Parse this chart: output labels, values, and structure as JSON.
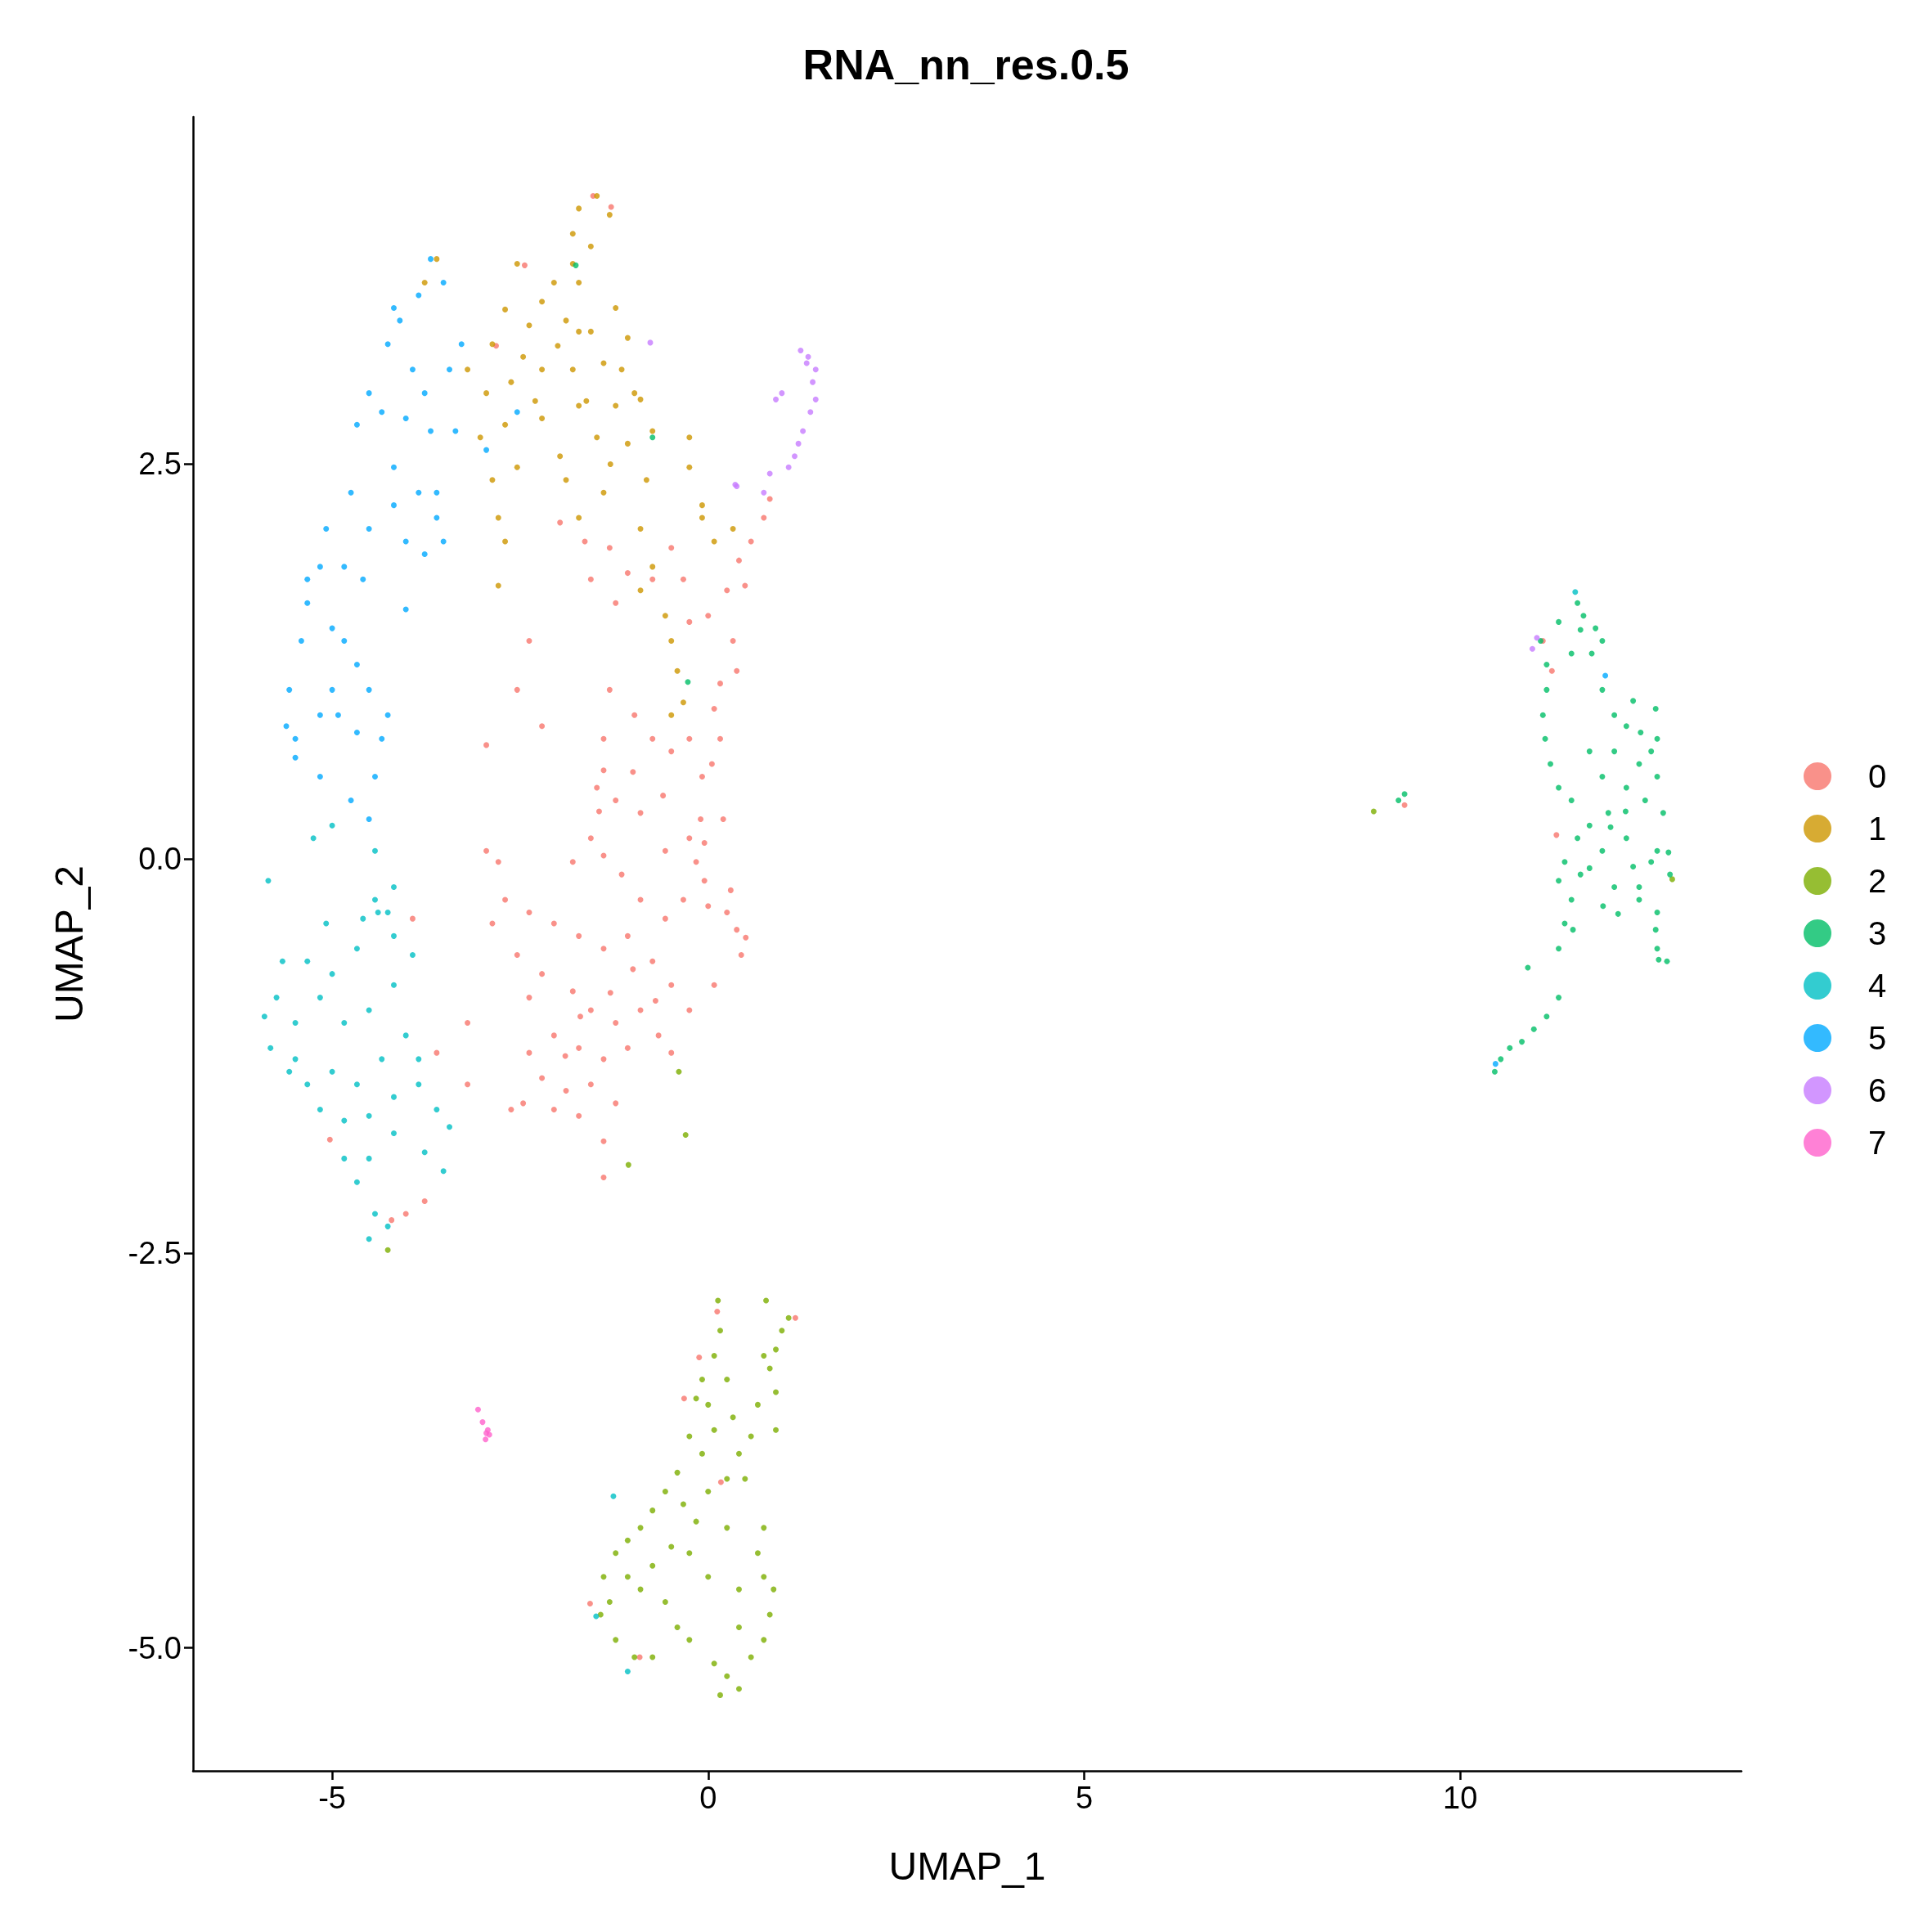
{
  "chart_data": {
    "type": "scatter",
    "title": "RNA_nn_res.0.5",
    "xlabel": "UMAP_1",
    "ylabel": "UMAP_2",
    "xlim": [
      -6.85,
      13.74
    ],
    "ylim": [
      -5.78,
      4.7
    ],
    "xticks": [
      -5,
      0,
      5,
      10
    ],
    "yticks": [
      {
        "value": -5,
        "label": "-5.0"
      },
      {
        "value": -2.5,
        "label": "-2.5"
      },
      {
        "value": 0,
        "label": "0.0"
      },
      {
        "value": 2.5,
        "label": "2.5"
      }
    ],
    "grid": false,
    "legend": "right",
    "marker": "circle",
    "series": [
      {
        "name": "0",
        "color": "#f8766d",
        "x": [
          -1.97,
          -1.64,
          -1.31,
          -1.07,
          -1.56,
          -1.23,
          -0.74,
          -0.49,
          -0.33,
          -0.25,
          0,
          0.25,
          0.41,
          0.57,
          0.74,
          0.82,
          0.49,
          0.33,
          0.38,
          0.16,
          0.08,
          0.16,
          0.05,
          -0.08,
          -0.25,
          -0.49,
          -0.74,
          -0.98,
          -1.31,
          -1.39,
          -1.39,
          -1.48,
          -1.23,
          -0.9,
          -1.56,
          -1.39,
          -1.8,
          -1.15,
          -0.57,
          -0.25,
          -0.16,
          -0.05,
          -0.33,
          -0.57,
          -0.9,
          0.25,
          0.38,
          0.44,
          0.08,
          -0.25,
          -0.49,
          -0.74,
          -1.07,
          -1.39,
          -1.72,
          -2.05,
          -2.38,
          -2.7,
          -2.87,
          -2.54,
          -2.21,
          -1.8,
          -1.56,
          -1.23,
          -0.9,
          -0.66,
          -0.49,
          -1.07,
          -1.39,
          -1.72,
          -2.05,
          -2.38,
          -2.21,
          -1.89,
          -1.56,
          -1.23,
          -1.72,
          -2.05,
          -2.46,
          -2.62,
          -1.39,
          -1.39,
          -2.38,
          -2.79,
          -2.95,
          -2.95,
          -2.54,
          -2.38,
          -2.21,
          -3.2,
          -3.61,
          -3.2,
          -4.02,
          -3.77,
          -4.21,
          -3.93,
          -5.03,
          -1.53,
          -1.29,
          -2.82,
          -2.44,
          11.1,
          11.22,
          11.28,
          9.26,
          0.12,
          1.16,
          -0.32,
          -0.12,
          0.17,
          -1.57,
          -0.91,
          -0.1,
          -0.05,
          0,
          -1.45,
          -1,
          -1.3,
          -1.7,
          -0.7,
          -1.9,
          0.3,
          0.5,
          -0.6,
          -1,
          0.2
        ],
        "values": [
          2.13,
          2.01,
          1.97,
          1.81,
          1.77,
          1.62,
          1.77,
          1.97,
          1.77,
          1.5,
          1.54,
          1.7,
          1.89,
          2.01,
          2.16,
          2.28,
          1.73,
          1.38,
          1.19,
          1.11,
          0.95,
          0.76,
          0.6,
          0.52,
          0.76,
          0.68,
          0.76,
          0.91,
          1.07,
          0.76,
          0.56,
          0.45,
          0.37,
          0.29,
          0.13,
          0.02,
          -0.02,
          -0.1,
          0.05,
          0.13,
          -0.02,
          -0.14,
          -0.26,
          -0.38,
          -0.26,
          -0.34,
          -0.45,
          -0.61,
          -0.8,
          -0.96,
          -0.8,
          -0.65,
          -0.49,
          -0.57,
          -0.49,
          -0.41,
          -0.34,
          -0.26,
          -0.41,
          -0.61,
          -0.73,
          -0.84,
          -0.96,
          -1.04,
          -0.96,
          -1.12,
          -1.23,
          -1.2,
          -1.27,
          -1.2,
          -1.12,
          -1.23,
          -1.39,
          -1.47,
          -1.43,
          -1.55,
          -1.63,
          -1.59,
          -1.55,
          -1.59,
          -1.79,
          -2.02,
          -0.88,
          -0.02,
          0.05,
          0.72,
          1.07,
          1.38,
          0.84,
          -1.04,
          -1.23,
          -1.43,
          -2.25,
          -2.17,
          -2.29,
          -0.38,
          -1.78,
          4.2,
          4.13,
          3.25,
          3.76,
          1.38,
          1.19,
          0.15,
          0.34,
          -2.87,
          -2.91,
          -3.42,
          -3.16,
          -3.95,
          -4.72,
          -5.06,
          0.25,
          0.1,
          -0.3,
          0.3,
          -0.7,
          -0.85,
          -1,
          -0.9,
          -1.25,
          -0.2,
          -0.5,
          0.4,
          0.55,
          0.25
        ]
      },
      {
        "name": "1",
        "color": "#cd9600",
        "x": [
          -1.48,
          -1.72,
          -1.31,
          -1.8,
          -1.56,
          -1.8,
          -2.05,
          -1.72,
          -2.21,
          -2.54,
          -2.7,
          -2.38,
          -1.89,
          -1.56,
          -1.23,
          -1.07,
          -2.87,
          -3.2,
          -2.95,
          -2.62,
          -2.21,
          -1.8,
          -1.39,
          -1.15,
          -0.9,
          -1.23,
          -1.72,
          -2.21,
          -2.7,
          -3.03,
          -2.87,
          -2.54,
          -1.97,
          -1.48,
          -1.07,
          -0.82,
          -1.39,
          -1.89,
          -2.79,
          -2.7,
          -2.79,
          -3.61,
          -3.77,
          -0.9,
          -0.74,
          -0.9,
          -0.57,
          -0.49,
          -0.41,
          -0.33,
          -0.49,
          -0.08,
          0.08,
          0.33,
          -0.08,
          -0.25,
          -0.25,
          -1.72,
          -1.72,
          -0.74,
          -0.98,
          -2.46,
          -1.62,
          -2,
          -1.3,
          -2.3
        ],
        "values": [
          4.2,
          4.12,
          4.08,
          3.96,
          3.88,
          3.77,
          3.65,
          3.65,
          3.53,
          3.77,
          3.48,
          3.38,
          3.41,
          3.34,
          3.49,
          3.3,
          3.26,
          3.1,
          2.95,
          3.02,
          3.1,
          3.1,
          3.14,
          3.1,
          2.91,
          2.87,
          2.87,
          2.79,
          2.75,
          2.67,
          2.4,
          2.48,
          2.55,
          2.67,
          2.63,
          2.4,
          2.32,
          2.4,
          2.16,
          2.01,
          1.73,
          3.8,
          3.65,
          2.09,
          1.85,
          1.7,
          1.54,
          1.38,
          1.19,
          0.99,
          0.91,
          2.16,
          2.01,
          2.09,
          2.24,
          2.67,
          2.48,
          2.16,
          3.34,
          2.71,
          2.95,
          3.18,
          2.9,
          3.25,
          2.5,
          2.9
        ]
      },
      {
        "name": "2",
        "color": "#7cae00",
        "x": [
          0.13,
          0.16,
          0.08,
          -0.08,
          0,
          -0.16,
          0.25,
          0.33,
          -0.25,
          -0.08,
          0.08,
          0.57,
          0.66,
          0.41,
          0.74,
          0.82,
          0.9,
          0.98,
          1.07,
          0.77,
          0.9,
          0.9,
          -0.41,
          -0.57,
          -0.74,
          -0.9,
          -0.33,
          -1.07,
          -1.23,
          -1.39,
          -1.31,
          -1.43,
          -1.23,
          -0.98,
          -0.74,
          -0.9,
          -0.57,
          -0.74,
          -0.25,
          0,
          -0.25,
          0.08,
          0.25,
          0.41,
          0.16,
          0.57,
          0.74,
          0.82,
          0.87,
          0.74,
          0.66,
          0.74,
          0.41,
          0.25,
          0.41,
          -0.41,
          -1.07,
          -0.49,
          0,
          -0.16,
          0.25,
          0.49,
          -0.39,
          -0.3,
          -1.06,
          -4.26,
          8.85,
          12.82
        ],
        "values": [
          -2.8,
          -2.99,
          -3.15,
          -3.3,
          -3.46,
          -3.42,
          -3.3,
          -3.54,
          -3.66,
          -3.77,
          -3.62,
          -3.66,
          -3.46,
          -3.77,
          -3.15,
          -3.23,
          -3.11,
          -2.99,
          -2.91,
          -2.8,
          -3.38,
          -3.62,
          -3.89,
          -4.01,
          -4.13,
          -4.24,
          -4.09,
          -4.32,
          -4.4,
          -4.55,
          -4.71,
          -4.79,
          -4.95,
          -5.06,
          -5.06,
          -4.63,
          -4.71,
          -4.48,
          -4.4,
          -4.55,
          -4.95,
          -5.1,
          -5.18,
          -5.26,
          -5.3,
          -5.06,
          -4.95,
          -4.79,
          -4.63,
          -4.55,
          -4.4,
          -4.24,
          -4.87,
          -4.24,
          -4.63,
          -4.87,
          -4.55,
          -4.36,
          -4.01,
          -4.2,
          -3.93,
          -3.93,
          -1.35,
          -1.75,
          -1.94,
          -2.48,
          0.3,
          -0.13
        ]
      },
      {
        "name": "3",
        "color": "#00be67",
        "x": [
          11.56,
          11.07,
          11.31,
          11.64,
          11.8,
          11.89,
          11.48,
          11.15,
          11.15,
          11.1,
          11.13,
          11.2,
          11.31,
          11.48,
          11.89,
          12.05,
          12.21,
          12.62,
          12.54,
          12.38,
          12.62,
          12.21,
          12.46,
          12.7,
          11.97,
          11.89,
          11.72,
          12.05,
          11.56,
          11.89,
          12.21,
          12.54,
          12.79,
          11.39,
          11.31,
          11.72,
          12.05,
          12.38,
          12.62,
          12.62,
          12.38,
          11.48,
          11.72,
          12.62,
          11.39,
          11.31,
          10.9,
          11.31,
          11.15,
          10.98,
          10.82,
          10.66,
          10.54,
          10.46,
          9.18,
          9.26,
          11.6,
          11.75,
          12,
          12.2,
          12.3,
          11.6,
          12.1,
          12.6,
          12.75,
          11.5,
          11.9,
          12.4,
          12.6,
          12.3,
          12.77,
          12.64,
          -1.76,
          -0.74,
          -0.27
        ],
        "values": [
          1.62,
          1.38,
          1.5,
          1.54,
          1.46,
          1.38,
          1.3,
          1.23,
          1.07,
          0.91,
          0.76,
          0.6,
          0.45,
          0.37,
          1.07,
          0.91,
          0.84,
          0.76,
          0.68,
          0.6,
          0.52,
          0.45,
          0.37,
          0.29,
          0.29,
          0.52,
          0.68,
          0.68,
          0.13,
          0.05,
          0.13,
          -0.02,
          -0.1,
          -0.02,
          -0.14,
          -0.06,
          -0.18,
          -0.26,
          -0.34,
          -0.57,
          -0.18,
          -0.26,
          0.21,
          0.05,
          -0.41,
          -0.57,
          -0.69,
          -0.88,
          -1,
          -1.08,
          -1.16,
          -1.2,
          -1.27,
          -1.35,
          0.37,
          0.41,
          1.45,
          1.3,
          0.2,
          0.3,
          -0.05,
          -0.1,
          -0.35,
          -0.45,
          -0.65,
          -0.45,
          -0.3,
          0.8,
          0.95,
          1,
          0.04,
          -0.64,
          3.76,
          2.67,
          1.12
        ]
      },
      {
        "name": "4",
        "color": "#00bfc4",
        "x": [
          -5,
          -5.25,
          -4.43,
          -4.43,
          -4.26,
          -4.59,
          -4.18,
          -5.08,
          -5.33,
          -5,
          -4.67,
          -5.66,
          -5.85,
          -5.9,
          -5.82,
          -5.49,
          -5.16,
          -4.84,
          -4.51,
          -4.18,
          -4.02,
          -4.34,
          -4.67,
          -5,
          -5.33,
          -5.49,
          -5.16,
          -4.84,
          -4.51,
          -4.18,
          -3.85,
          -3.61,
          -3.44,
          -3.77,
          -3.52,
          -4.18,
          -4.51,
          -4.67,
          -4.43,
          -4.51,
          -4.26,
          -4.84,
          -5.74,
          -5.57,
          -4.18,
          -3.93,
          -3.85,
          -4.39,
          -1.26,
          -1.49,
          -1.07,
          11.53
        ],
        "values": [
          0.21,
          0.13,
          0.05,
          -0.26,
          -0.34,
          -0.38,
          -0.49,
          -0.41,
          -0.65,
          -0.73,
          -0.57,
          -0.65,
          -0.14,
          -1,
          -1.2,
          -1.04,
          -0.88,
          -1.04,
          -0.96,
          -0.8,
          -1.12,
          -1.27,
          -1.43,
          -1.35,
          -1.43,
          -1.27,
          -1.59,
          -1.66,
          -1.63,
          -1.51,
          -1.43,
          -1.59,
          -1.7,
          -1.86,
          -1.98,
          -1.74,
          -1.9,
          -2.05,
          -2.25,
          -2.41,
          -2.33,
          -1.9,
          -0.88,
          -1.35,
          -0.18,
          -0.61,
          -1.27,
          -0.34,
          -4.04,
          -4.8,
          -5.15,
          1.69
        ]
      },
      {
        "name": "5",
        "color": "#00a9ff",
        "x": [
          -3.69,
          -3.85,
          -4.1,
          -4.26,
          -3.93,
          -3.77,
          -4.02,
          -3.69,
          -3.44,
          -4.51,
          -4.67,
          -4.18,
          -3.85,
          -3.61,
          -3.77,
          -4.18,
          -4.51,
          -4.75,
          -5.08,
          -5.16,
          -4.84,
          -4.59,
          -5.33,
          -5,
          -5.41,
          -4.67,
          -5,
          -4.92,
          -5.57,
          -5.61,
          -5.49,
          -5.16,
          -4.75,
          -4.43,
          -4.34,
          -4.51,
          -4.26,
          -4.02,
          -5.33,
          -4.51,
          -3.61,
          -3.52,
          -4.02,
          -4.34,
          -4.18,
          -3.52,
          -3.36,
          -3.28,
          -5.49,
          -4.84,
          -5.16,
          -4.67,
          -2.54,
          -2.95,
          11.93,
          10.47
        ],
        "values": [
          3.8,
          3.57,
          3.41,
          3.26,
          3.1,
          2.95,
          2.79,
          2.71,
          3.1,
          2.95,
          2.75,
          2.48,
          2.32,
          2.16,
          1.93,
          2.24,
          2.09,
          2.32,
          2.09,
          1.85,
          1.85,
          1.77,
          1.62,
          1.46,
          1.38,
          1.23,
          1.07,
          0.91,
          1.07,
          0.84,
          0.64,
          0.52,
          0.37,
          0.52,
          0.76,
          1.07,
          0.91,
          1.58,
          1.77,
          0.25,
          2.32,
          2.01,
          2.01,
          2.83,
          3.49,
          3.65,
          2.71,
          3.26,
          0.76,
          1.38,
          0.91,
          0.8,
          2.83,
          2.59,
          1.16,
          -1.3
        ]
      },
      {
        "name": "6",
        "color": "#c77cff",
        "x": [
          1.23,
          1.31,
          1.39,
          1.43,
          1.36,
          1.26,
          1.2,
          1.15,
          0.98,
          0.9,
          0.82,
          0.74,
          0.38,
          1.07,
          1.43,
          1.33,
          11.02,
          10.96,
          -0.77,
          0.36
        ],
        "values": [
          3.22,
          3.14,
          3.02,
          2.91,
          2.83,
          2.71,
          2.63,
          2.55,
          2.95,
          2.91,
          2.44,
          2.32,
          2.36,
          2.48,
          3.1,
          3.18,
          1.4,
          1.33,
          3.27,
          2.37
        ]
      },
      {
        "name": "7",
        "color": "#ff61cc",
        "x": [
          -3.06,
          -3,
          -2.95,
          -2.96,
          -2.91,
          -2.93
        ],
        "values": [
          -3.49,
          -3.57,
          -3.64,
          -3.68,
          -3.65,
          -3.62
        ]
      }
    ]
  }
}
